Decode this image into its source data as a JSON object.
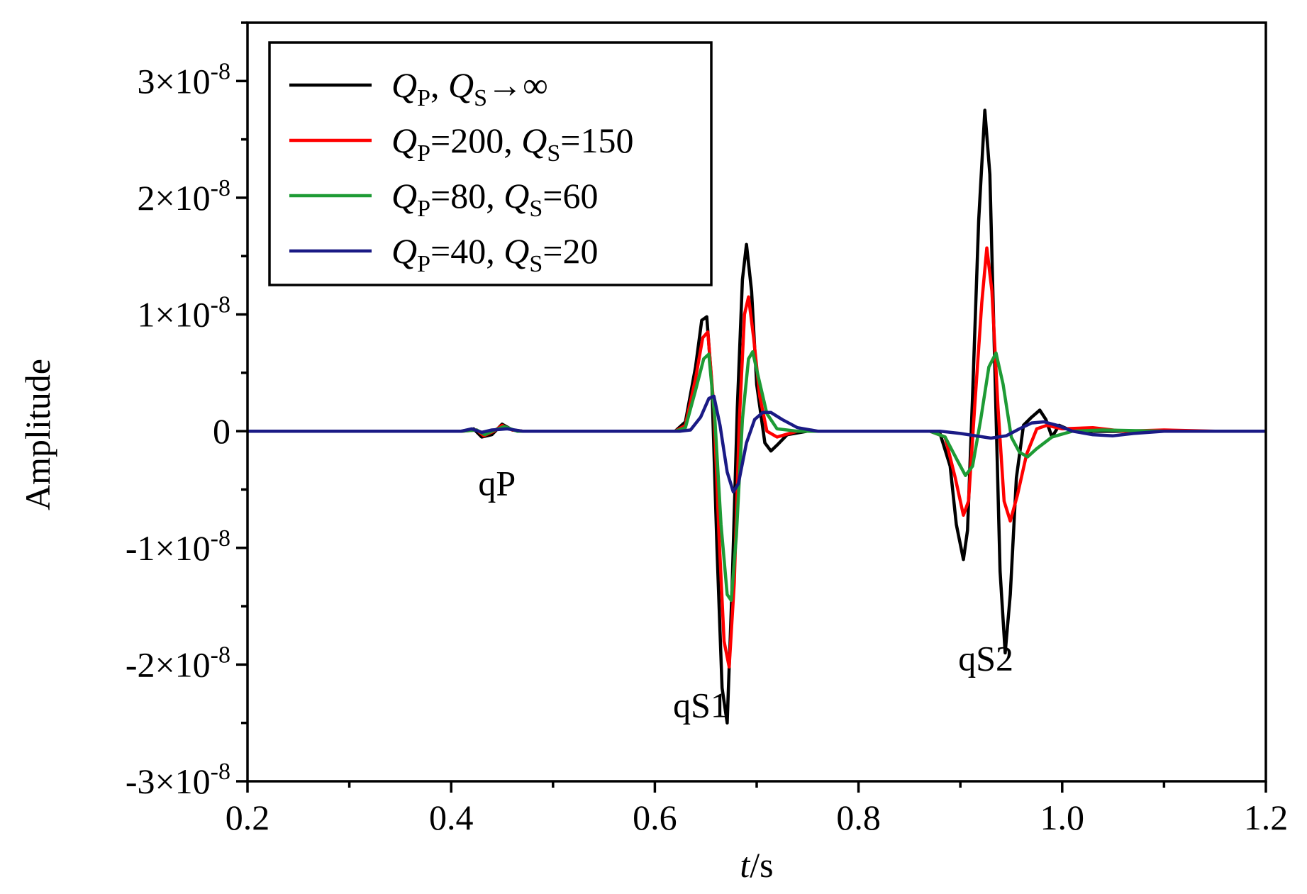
{
  "chart_data": {
    "type": "line",
    "xlabel_italic": "t",
    "xlabel_rest": "/s",
    "ylabel": "Amplitude",
    "xlim": [
      0.2,
      1.2
    ],
    "ylim": [
      -3e-08,
      3.5e-08
    ],
    "x_ticks": [
      {
        "value": 0.2,
        "label": "0.2"
      },
      {
        "value": 0.4,
        "label": "0.4"
      },
      {
        "value": 0.6,
        "label": "0.6"
      },
      {
        "value": 0.8,
        "label": "0.8"
      },
      {
        "value": 1.0,
        "label": "1.0"
      },
      {
        "value": 1.2,
        "label": "1.2"
      }
    ],
    "y_ticks": [
      {
        "value": 3e-08,
        "mantissa": "3×10",
        "exp": "-8"
      },
      {
        "value": 2e-08,
        "mantissa": "2×10",
        "exp": "-8"
      },
      {
        "value": 1e-08,
        "mantissa": "1×10",
        "exp": "-8"
      },
      {
        "value": 0,
        "mantissa": "0",
        "exp": ""
      },
      {
        "value": -1e-08,
        "mantissa": "-1×10",
        "exp": "-8"
      },
      {
        "value": -2e-08,
        "mantissa": "-2×10",
        "exp": "-8"
      },
      {
        "value": -3e-08,
        "mantissa": "-3×10",
        "exp": "-8"
      }
    ],
    "x_minor_step": 0.1,
    "y_minor_step": 5e-09,
    "annotations": [
      {
        "text": "qP",
        "x": 0.445,
        "y": -5.5e-09
      },
      {
        "text": "qS1",
        "x": 0.645,
        "y": -2.45e-08
      },
      {
        "text": "qS2",
        "x": 0.925,
        "y": -2.05e-08
      }
    ],
    "legend_position": "top-left",
    "series": [
      {
        "legend": [
          "Q",
          "P",
          ", ",
          "Q",
          "S",
          "→∞"
        ],
        "color": "#000000",
        "points": [
          [
            0.2,
            0
          ],
          [
            0.41,
            0
          ],
          [
            0.422,
            2e-10
          ],
          [
            0.43,
            -5e-10
          ],
          [
            0.44,
            -3e-10
          ],
          [
            0.45,
            6e-10
          ],
          [
            0.46,
            1e-10
          ],
          [
            0.47,
            0
          ],
          [
            0.62,
            0
          ],
          [
            0.63,
            8e-10
          ],
          [
            0.64,
            5.5e-09
          ],
          [
            0.646,
            9.5e-09
          ],
          [
            0.651,
            9.8e-09
          ],
          [
            0.656,
            4e-09
          ],
          [
            0.661,
            -1e-08
          ],
          [
            0.666,
            -2.2e-08
          ],
          [
            0.671,
            -2.5e-08
          ],
          [
            0.676,
            -1.3e-08
          ],
          [
            0.681,
            2e-09
          ],
          [
            0.686,
            1.3e-08
          ],
          [
            0.69,
            1.6e-08
          ],
          [
            0.695,
            1.2e-08
          ],
          [
            0.7,
            4e-09
          ],
          [
            0.708,
            -1e-09
          ],
          [
            0.714,
            -1.7e-09
          ],
          [
            0.72,
            -1.2e-09
          ],
          [
            0.73,
            -3e-10
          ],
          [
            0.75,
            0
          ],
          [
            0.78,
            0
          ],
          [
            0.87,
            0
          ],
          [
            0.88,
            -2e-10
          ],
          [
            0.89,
            -3e-09
          ],
          [
            0.896,
            -8e-09
          ],
          [
            0.903,
            -1.1e-08
          ],
          [
            0.907,
            -8.5e-09
          ],
          [
            0.912,
            3e-09
          ],
          [
            0.918,
            1.8e-08
          ],
          [
            0.924,
            2.75e-08
          ],
          [
            0.929,
            2.2e-08
          ],
          [
            0.934,
            5e-09
          ],
          [
            0.939,
            -1.2e-08
          ],
          [
            0.944,
            -1.9e-08
          ],
          [
            0.949,
            -1.4e-08
          ],
          [
            0.955,
            -4e-09
          ],
          [
            0.962,
            5e-10
          ],
          [
            0.97,
            1.2e-09
          ],
          [
            0.978,
            1.8e-09
          ],
          [
            0.984,
            1e-09
          ],
          [
            0.99,
            -5e-10
          ],
          [
            0.997,
            5e-10
          ],
          [
            1.005,
            2e-10
          ],
          [
            1.02,
            0
          ],
          [
            1.2,
            0
          ]
        ]
      },
      {
        "legend": [
          "Q",
          "P",
          "=200, ",
          "Q",
          "S",
          "=150"
        ],
        "color": "#ff0000",
        "points": [
          [
            0.2,
            0
          ],
          [
            0.41,
            0
          ],
          [
            0.425,
            1e-10
          ],
          [
            0.432,
            -4e-10
          ],
          [
            0.442,
            0
          ],
          [
            0.45,
            5e-10
          ],
          [
            0.46,
            1e-10
          ],
          [
            0.47,
            0
          ],
          [
            0.62,
            0
          ],
          [
            0.63,
            5e-10
          ],
          [
            0.64,
            4.5e-09
          ],
          [
            0.647,
            8e-09
          ],
          [
            0.652,
            8.5e-09
          ],
          [
            0.658,
            2e-09
          ],
          [
            0.663,
            -9e-09
          ],
          [
            0.668,
            -1.8e-08
          ],
          [
            0.673,
            -2.02e-08
          ],
          [
            0.678,
            -1.3e-08
          ],
          [
            0.683,
            1e-09
          ],
          [
            0.688,
            1e-08
          ],
          [
            0.692,
            1.15e-08
          ],
          [
            0.697,
            8e-09
          ],
          [
            0.703,
            3e-09
          ],
          [
            0.71,
            0
          ],
          [
            0.72,
            -5e-10
          ],
          [
            0.74,
            0
          ],
          [
            0.78,
            0
          ],
          [
            0.87,
            0
          ],
          [
            0.885,
            -5e-10
          ],
          [
            0.895,
            -4e-09
          ],
          [
            0.903,
            -7.2e-09
          ],
          [
            0.908,
            -6e-09
          ],
          [
            0.914,
            2e-09
          ],
          [
            0.921,
            1.1e-08
          ],
          [
            0.926,
            1.57e-08
          ],
          [
            0.931,
            1.2e-08
          ],
          [
            0.937,
            2e-09
          ],
          [
            0.943,
            -6e-09
          ],
          [
            0.949,
            -7.7e-09
          ],
          [
            0.956,
            -5.5e-09
          ],
          [
            0.965,
            -2e-09
          ],
          [
            0.975,
            2e-10
          ],
          [
            0.985,
            5e-10
          ],
          [
            1.0,
            2e-10
          ],
          [
            1.03,
            3e-10
          ],
          [
            1.06,
            0
          ],
          [
            1.1,
            1e-10
          ],
          [
            1.15,
            0
          ],
          [
            1.2,
            0
          ]
        ]
      },
      {
        "legend": [
          "Q",
          "P",
          "=80, ",
          "Q",
          "S",
          "=60"
        ],
        "color": "#1e9b35",
        "points": [
          [
            0.2,
            0
          ],
          [
            0.41,
            0
          ],
          [
            0.425,
            1e-10
          ],
          [
            0.433,
            -3e-10
          ],
          [
            0.443,
            1e-10
          ],
          [
            0.452,
            4e-10
          ],
          [
            0.465,
            0
          ],
          [
            0.62,
            0
          ],
          [
            0.63,
            3e-10
          ],
          [
            0.64,
            3.5e-09
          ],
          [
            0.648,
            6.2e-09
          ],
          [
            0.653,
            6.6e-09
          ],
          [
            0.659,
            1e-09
          ],
          [
            0.665,
            -8e-09
          ],
          [
            0.671,
            -1.4e-08
          ],
          [
            0.675,
            -1.45e-08
          ],
          [
            0.68,
            -9e-09
          ],
          [
            0.686,
            1e-09
          ],
          [
            0.692,
            6.2e-09
          ],
          [
            0.696,
            6.8e-09
          ],
          [
            0.702,
            4.5e-09
          ],
          [
            0.71,
            1.5e-09
          ],
          [
            0.72,
            2e-10
          ],
          [
            0.74,
            0
          ],
          [
            0.78,
            0
          ],
          [
            0.87,
            0
          ],
          [
            0.885,
            -5e-10
          ],
          [
            0.897,
            -2.5e-09
          ],
          [
            0.905,
            -3.8e-09
          ],
          [
            0.912,
            -3e-09
          ],
          [
            0.92,
            1e-09
          ],
          [
            0.928,
            5.5e-09
          ],
          [
            0.935,
            6.7e-09
          ],
          [
            0.942,
            4e-09
          ],
          [
            0.95,
            -5e-10
          ],
          [
            0.958,
            -1.8e-09
          ],
          [
            0.966,
            -2.2e-09
          ],
          [
            0.975,
            -1.5e-09
          ],
          [
            0.99,
            -5e-10
          ],
          [
            1.01,
            0
          ],
          [
            1.04,
            1e-10
          ],
          [
            1.1,
            0
          ],
          [
            1.2,
            0
          ]
        ]
      },
      {
        "legend": [
          "Q",
          "P",
          "=40, ",
          "Q",
          "S",
          "=20"
        ],
        "color": "#1a1a85",
        "points": [
          [
            0.2,
            0
          ],
          [
            0.41,
            0
          ],
          [
            0.42,
            2e-10
          ],
          [
            0.43,
            -1e-10
          ],
          [
            0.44,
            1e-10
          ],
          [
            0.455,
            2e-10
          ],
          [
            0.47,
            0
          ],
          [
            0.625,
            0
          ],
          [
            0.635,
            1e-10
          ],
          [
            0.645,
            1.2e-09
          ],
          [
            0.653,
            2.8e-09
          ],
          [
            0.658,
            3e-09
          ],
          [
            0.664,
            5e-10
          ],
          [
            0.671,
            -3.5e-09
          ],
          [
            0.677,
            -5.2e-09
          ],
          [
            0.682,
            -4.5e-09
          ],
          [
            0.69,
            -1e-09
          ],
          [
            0.698,
            1e-09
          ],
          [
            0.706,
            1.6e-09
          ],
          [
            0.714,
            1.6e-09
          ],
          [
            0.725,
            1e-09
          ],
          [
            0.74,
            3e-10
          ],
          [
            0.76,
            0
          ],
          [
            0.8,
            0
          ],
          [
            0.88,
            0
          ],
          [
            0.9,
            -2e-10
          ],
          [
            0.915,
            -4e-10
          ],
          [
            0.93,
            -6e-10
          ],
          [
            0.945,
            -4e-10
          ],
          [
            0.958,
            2e-10
          ],
          [
            0.97,
            7e-10
          ],
          [
            0.982,
            8e-10
          ],
          [
            0.995,
            5e-10
          ],
          [
            1.01,
            0
          ],
          [
            1.03,
            -3e-10
          ],
          [
            1.05,
            -4e-10
          ],
          [
            1.07,
            -2e-10
          ],
          [
            1.1,
            0
          ],
          [
            1.2,
            0
          ]
        ]
      }
    ]
  }
}
